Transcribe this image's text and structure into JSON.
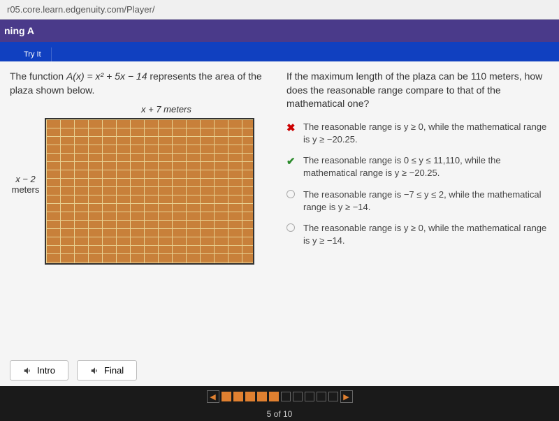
{
  "url": "r05.core.learn.edgenuity.com/Player/",
  "header": {
    "title": "ning A"
  },
  "tab": {
    "label": "Try It"
  },
  "problem": {
    "text_before": "The function ",
    "function": "A(x) = x² + 5x − 14",
    "text_after": " represents the area of the plaza shown below.",
    "top_label": "x + 7 meters",
    "left_label_1": "x − 2",
    "left_label_2": "meters"
  },
  "question": {
    "text": "If the maximum length of the plaza can be 110 meters, how does the reasonable range compare to that of the mathematical one?"
  },
  "answers": [
    {
      "mark": "wrong",
      "text": "The reasonable range is y ≥ 0, while the mathematical range is y ≥ −20.25."
    },
    {
      "mark": "correct",
      "text": "The reasonable range is 0 ≤ y ≤ 11,110, while the mathematical range is y ≥ −20.25."
    },
    {
      "mark": "radio",
      "text": "The reasonable range is −7 ≤ y ≤ 2, while the mathematical range is y ≥ −14."
    },
    {
      "mark": "radio",
      "text": "The reasonable range is y ≥ 0, while the mathematical range is y ≥ −14."
    }
  ],
  "buttons": {
    "intro": "Intro",
    "final": "Final"
  },
  "progress": {
    "counter": "5 of 10",
    "total": 10,
    "current": 5
  },
  "colors": {
    "header_bg": "#4a3a8a",
    "tab_bg": "#1040c0",
    "brick": "#c8803a",
    "mortar": "#e8d090",
    "wrong": "#cc0000",
    "correct": "#2a8a2a",
    "accent": "#e08030"
  }
}
